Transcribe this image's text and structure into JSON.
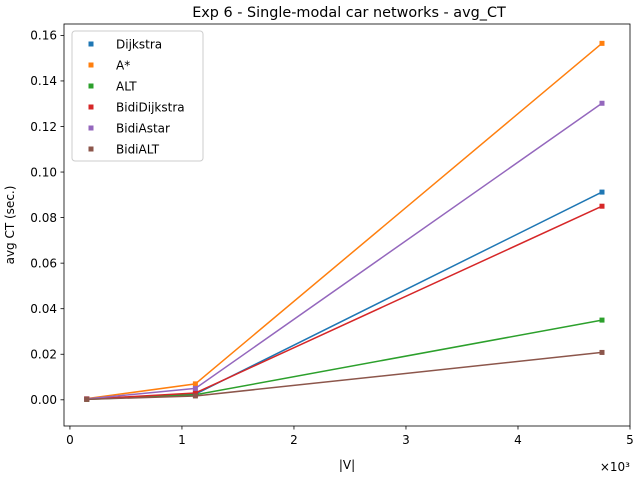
{
  "chart_data": {
    "type": "line",
    "title": "Exp 6 - Single-modal car networks - avg_CT",
    "xlabel": "|V|",
    "ylabel": "avg CT (sec.)",
    "x_multiplier_label": "×10³",
    "x_units": "thousands of vertices",
    "xlim": [
      -0.053,
      5.0
    ],
    "ylim": [
      -0.0115,
      0.165
    ],
    "x_ticks": [
      0,
      1,
      2,
      3,
      4,
      5
    ],
    "x_tick_labels": [
      "0",
      "1",
      "2",
      "3",
      "4",
      "5"
    ],
    "y_ticks": [
      0.0,
      0.02,
      0.04,
      0.06,
      0.08,
      0.1,
      0.12,
      0.14,
      0.16
    ],
    "y_tick_labels": [
      "0.00",
      "0.02",
      "0.04",
      "0.06",
      "0.08",
      "0.10",
      "0.12",
      "0.14",
      "0.16"
    ],
    "grid": false,
    "legend_position": "top-left",
    "marker": "square",
    "x": [
      0.15,
      1.12,
      4.75
    ],
    "series": [
      {
        "name": "Dijkstra",
        "color": "#1f77b4",
        "values": [
          0.0003,
          0.0025,
          0.0912
        ]
      },
      {
        "name": "A*",
        "color": "#ff7f0e",
        "values": [
          0.0005,
          0.007,
          0.1565
        ]
      },
      {
        "name": "ALT",
        "color": "#2ca02c",
        "values": [
          0.0002,
          0.0022,
          0.035
        ]
      },
      {
        "name": "BidiDijkstra",
        "color": "#d62728",
        "values": [
          0.0003,
          0.003,
          0.085
        ]
      },
      {
        "name": "BidiAstar",
        "color": "#9467bd",
        "values": [
          0.0004,
          0.005,
          0.1302
        ]
      },
      {
        "name": "BidiALT",
        "color": "#8c564b",
        "values": [
          0.0002,
          0.0017,
          0.0208
        ]
      }
    ]
  }
}
